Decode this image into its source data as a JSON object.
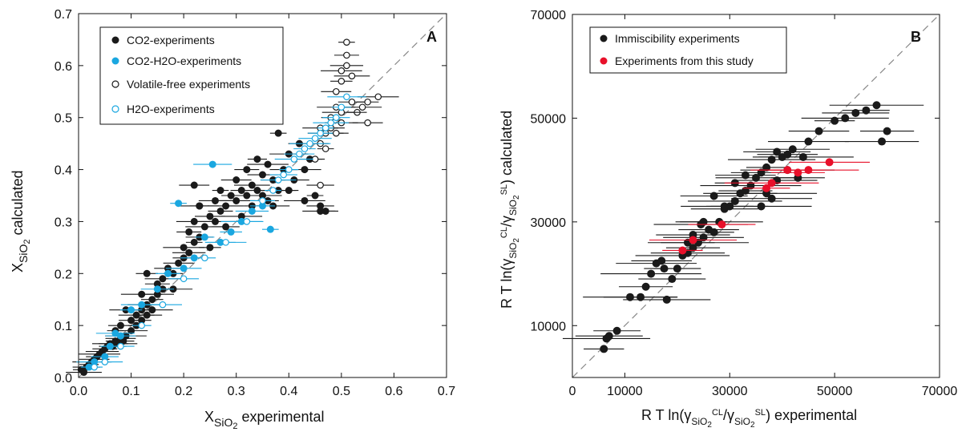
{
  "chart_data": [
    {
      "panel": "A",
      "type": "scatter",
      "xlabel": {
        "base": "X",
        "sub": "SiO",
        "sub2": "2",
        "rest": " experimental"
      },
      "ylabel": {
        "base": "X",
        "sub": "SiO",
        "sub2": "2",
        "rest": " calculated"
      },
      "xlim": [
        0,
        0.7
      ],
      "ylim": [
        0,
        0.7
      ],
      "xticks": [
        "0.0",
        "0.1",
        "0.2",
        "0.3",
        "0.4",
        "0.5",
        "0.6",
        "0.7"
      ],
      "yticks": [
        "0.0",
        "0.1",
        "0.2",
        "0.3",
        "0.4",
        "0.5",
        "0.6",
        "0.7"
      ],
      "identity_line": true,
      "grid": false,
      "legend_position": "top-left",
      "colors": {
        "black": "#1a1a1a",
        "blue": "#1aa7e0"
      },
      "series": [
        {
          "name": "CO2-experiments",
          "marker": "filled",
          "color": "#1a1a1a",
          "points": [
            [
              0.005,
              0.015
            ],
            [
              0.01,
              0.01
            ],
            [
              0.015,
              0.02
            ],
            [
              0.02,
              0.025
            ],
            [
              0.025,
              0.03
            ],
            [
              0.03,
              0.035
            ],
            [
              0.035,
              0.04
            ],
            [
              0.04,
              0.045
            ],
            [
              0.045,
              0.05
            ],
            [
              0.05,
              0.055
            ],
            [
              0.055,
              0.06
            ],
            [
              0.06,
              0.065
            ],
            [
              0.065,
              0.06
            ],
            [
              0.07,
              0.07
            ],
            [
              0.075,
              0.065
            ],
            [
              0.08,
              0.075
            ],
            [
              0.085,
              0.07
            ],
            [
              0.09,
              0.08
            ],
            [
              0.1,
              0.09
            ],
            [
              0.1,
              0.11
            ],
            [
              0.11,
              0.1
            ],
            [
              0.11,
              0.12
            ],
            [
              0.12,
              0.13
            ],
            [
              0.12,
              0.11
            ],
            [
              0.13,
              0.14
            ],
            [
              0.13,
              0.12
            ],
            [
              0.14,
              0.15
            ],
            [
              0.14,
              0.13
            ],
            [
              0.15,
              0.16
            ],
            [
              0.15,
              0.18
            ],
            [
              0.16,
              0.17
            ],
            [
              0.16,
              0.19
            ],
            [
              0.17,
              0.21
            ],
            [
              0.18,
              0.2
            ],
            [
              0.18,
              0.17
            ],
            [
              0.19,
              0.22
            ],
            [
              0.2,
              0.23
            ],
            [
              0.2,
              0.25
            ],
            [
              0.21,
              0.24
            ],
            [
              0.21,
              0.28
            ],
            [
              0.22,
              0.26
            ],
            [
              0.22,
              0.3
            ],
            [
              0.23,
              0.27
            ],
            [
              0.23,
              0.33
            ],
            [
              0.24,
              0.29
            ],
            [
              0.25,
              0.31
            ],
            [
              0.25,
              0.25
            ],
            [
              0.26,
              0.3
            ],
            [
              0.26,
              0.34
            ],
            [
              0.27,
              0.32
            ],
            [
              0.27,
              0.36
            ],
            [
              0.28,
              0.33
            ],
            [
              0.28,
              0.29
            ],
            [
              0.29,
              0.35
            ],
            [
              0.3,
              0.34
            ],
            [
              0.3,
              0.38
            ],
            [
              0.31,
              0.36
            ],
            [
              0.31,
              0.31
            ],
            [
              0.32,
              0.35
            ],
            [
              0.32,
              0.4
            ],
            [
              0.33,
              0.33
            ],
            [
              0.33,
              0.37
            ],
            [
              0.34,
              0.36
            ],
            [
              0.34,
              0.42
            ],
            [
              0.35,
              0.35
            ],
            [
              0.35,
              0.39
            ],
            [
              0.36,
              0.34
            ],
            [
              0.36,
              0.41
            ],
            [
              0.37,
              0.33
            ],
            [
              0.37,
              0.38
            ],
            [
              0.38,
              0.47
            ],
            [
              0.38,
              0.36
            ],
            [
              0.39,
              0.4
            ],
            [
              0.4,
              0.36
            ],
            [
              0.4,
              0.43
            ],
            [
              0.41,
              0.38
            ],
            [
              0.42,
              0.45
            ],
            [
              0.43,
              0.34
            ],
            [
              0.43,
              0.4
            ],
            [
              0.44,
              0.42
            ],
            [
              0.45,
              0.35
            ],
            [
              0.46,
              0.32
            ],
            [
              0.46,
              0.33
            ],
            [
              0.47,
              0.32
            ],
            [
              0.23,
              0.33
            ],
            [
              0.22,
              0.37
            ],
            [
              0.13,
              0.2
            ],
            [
              0.12,
              0.16
            ],
            [
              0.09,
              0.13
            ],
            [
              0.08,
              0.1
            ],
            [
              0.07,
              0.09
            ]
          ]
        },
        {
          "name": "CO2-H2O-experiments",
          "marker": "filled",
          "color": "#1aa7e0",
          "points": [
            [
              0.02,
              0.02
            ],
            [
              0.03,
              0.03
            ],
            [
              0.05,
              0.04
            ],
            [
              0.06,
              0.06
            ],
            [
              0.07,
              0.085
            ],
            [
              0.08,
              0.08
            ],
            [
              0.1,
              0.13
            ],
            [
              0.12,
              0.14
            ],
            [
              0.15,
              0.17
            ],
            [
              0.17,
              0.2
            ],
            [
              0.19,
              0.335
            ],
            [
              0.2,
              0.21
            ],
            [
              0.22,
              0.23
            ],
            [
              0.24,
              0.27
            ],
            [
              0.255,
              0.41
            ],
            [
              0.27,
              0.26
            ],
            [
              0.29,
              0.28
            ],
            [
              0.31,
              0.3
            ],
            [
              0.33,
              0.32
            ],
            [
              0.35,
              0.33
            ],
            [
              0.365,
              0.285
            ]
          ]
        },
        {
          "name": "Volatile-free experiments",
          "marker": "open",
          "color": "#1a1a1a",
          "points": [
            [
              0.46,
              0.45
            ],
            [
              0.47,
              0.47
            ],
            [
              0.48,
              0.48
            ],
            [
              0.48,
              0.5
            ],
            [
              0.49,
              0.52
            ],
            [
              0.49,
              0.55
            ],
            [
              0.5,
              0.57
            ],
            [
              0.5,
              0.59
            ],
            [
              0.51,
              0.6
            ],
            [
              0.51,
              0.62
            ],
            [
              0.51,
              0.645
            ],
            [
              0.52,
              0.58
            ],
            [
              0.52,
              0.53
            ],
            [
              0.53,
              0.51
            ],
            [
              0.54,
              0.52
            ],
            [
              0.55,
              0.49
            ],
            [
              0.55,
              0.53
            ],
            [
              0.57,
              0.54
            ],
            [
              0.5,
              0.49
            ],
            [
              0.49,
              0.47
            ],
            [
              0.47,
              0.44
            ],
            [
              0.46,
              0.48
            ],
            [
              0.46,
              0.37
            ],
            [
              0.45,
              0.42
            ],
            [
              0.5,
              0.51
            ]
          ]
        },
        {
          "name": "H2O-experiments",
          "marker": "open",
          "color": "#1aa7e0",
          "points": [
            [
              0.03,
              0.02
            ],
            [
              0.05,
              0.03
            ],
            [
              0.08,
              0.06
            ],
            [
              0.12,
              0.1
            ],
            [
              0.16,
              0.14
            ],
            [
              0.2,
              0.19
            ],
            [
              0.24,
              0.23
            ],
            [
              0.28,
              0.26
            ],
            [
              0.32,
              0.3
            ],
            [
              0.35,
              0.34
            ],
            [
              0.37,
              0.36
            ],
            [
              0.38,
              0.38
            ],
            [
              0.39,
              0.39
            ],
            [
              0.4,
              0.4
            ],
            [
              0.41,
              0.42
            ],
            [
              0.42,
              0.43
            ],
            [
              0.43,
              0.44
            ],
            [
              0.44,
              0.45
            ],
            [
              0.45,
              0.46
            ],
            [
              0.46,
              0.47
            ],
            [
              0.47,
              0.48
            ],
            [
              0.48,
              0.49
            ],
            [
              0.49,
              0.5
            ],
            [
              0.5,
              0.52
            ],
            [
              0.51,
              0.54
            ]
          ]
        }
      ]
    },
    {
      "panel": "B",
      "type": "scatter",
      "xlabel": {
        "text": "R T ln(γ",
        "sub1": "SiO",
        "sub1b": "2",
        "sup1": "CL",
        "mid": "/γ",
        "sub2": "SiO",
        "sub2b": "2",
        "sup2": "SL",
        "rest": ") experimental"
      },
      "ylabel": {
        "text": "R T ln(γ",
        "sub1": "SiO",
        "sub1b": "2",
        "sup1": "CL",
        "mid": "/γ",
        "sub2": "SiO",
        "sub2b": "2",
        "sup2": "SL",
        "rest": ") calculated"
      },
      "xlim": [
        0,
        70000
      ],
      "ylim": [
        0,
        70000
      ],
      "xticks": [
        "0",
        "10000",
        "30000",
        "50000",
        "70000"
      ],
      "xtick_values": [
        0,
        10000,
        30000,
        50000,
        70000
      ],
      "yticks": [
        "10000",
        "30000",
        "50000",
        "70000"
      ],
      "ytick_values": [
        10000,
        30000,
        50000,
        70000
      ],
      "identity_line": true,
      "grid": false,
      "legend_position": "top-left",
      "series": [
        {
          "name": "Immiscibility experiments",
          "marker": "filled",
          "color": "#1a1a1a",
          "points": [
            [
              6000,
              5500
            ],
            [
              6500,
              7500
            ],
            [
              7000,
              8000
            ],
            [
              8500,
              9000
            ],
            [
              11000,
              15500
            ],
            [
              13000,
              15500
            ],
            [
              14000,
              17500
            ],
            [
              15000,
              20000
            ],
            [
              16000,
              22000
            ],
            [
              17000,
              22500
            ],
            [
              17500,
              21000
            ],
            [
              18000,
              15000
            ],
            [
              19000,
              19000
            ],
            [
              20000,
              21000
            ],
            [
              21000,
              23500
            ],
            [
              22000,
              24000
            ],
            [
              23000,
              25000
            ],
            [
              24000,
              26000
            ],
            [
              25000,
              27000
            ],
            [
              26000,
              28500
            ],
            [
              27000,
              28000
            ],
            [
              28000,
              30000
            ],
            [
              29000,
              32500
            ],
            [
              30000,
              33000
            ],
            [
              31000,
              34000
            ],
            [
              32000,
              35500
            ],
            [
              33000,
              36000
            ],
            [
              34000,
              37000
            ],
            [
              35000,
              38500
            ],
            [
              36000,
              39500
            ],
            [
              37000,
              40500
            ],
            [
              38000,
              42000
            ],
            [
              39000,
              43500
            ],
            [
              40000,
              42500
            ],
            [
              41000,
              40000
            ],
            [
              42000,
              44000
            ],
            [
              43000,
              38500
            ],
            [
              44000,
              42500
            ],
            [
              45000,
              45500
            ],
            [
              47000,
              47500
            ],
            [
              50000,
              49500
            ],
            [
              52000,
              50000
            ],
            [
              54000,
              51000
            ],
            [
              56000,
              51500
            ],
            [
              58000,
              52500
            ],
            [
              59000,
              45500
            ],
            [
              60000,
              47500
            ],
            [
              37000,
              35500
            ],
            [
              39000,
              38000
            ],
            [
              33000,
              39000
            ],
            [
              31000,
              37500
            ],
            [
              29000,
              33000
            ],
            [
              27000,
              35000
            ],
            [
              25000,
              30000
            ],
            [
              24500,
              29500
            ],
            [
              23000,
              27500
            ],
            [
              22000,
              26000
            ],
            [
              36000,
              33000
            ],
            [
              38000,
              34500
            ],
            [
              41000,
              43000
            ]
          ]
        },
        {
          "name": "Experiments from this study",
          "marker": "filled",
          "color": "#e8102a",
          "points": [
            [
              21000,
              24500
            ],
            [
              23000,
              26500
            ],
            [
              28500,
              29500
            ],
            [
              37000,
              36500
            ],
            [
              38000,
              37500
            ],
            [
              41000,
              40000
            ],
            [
              43000,
              39500
            ],
            [
              45000,
              40000
            ],
            [
              49000,
              41500
            ]
          ]
        }
      ]
    }
  ]
}
